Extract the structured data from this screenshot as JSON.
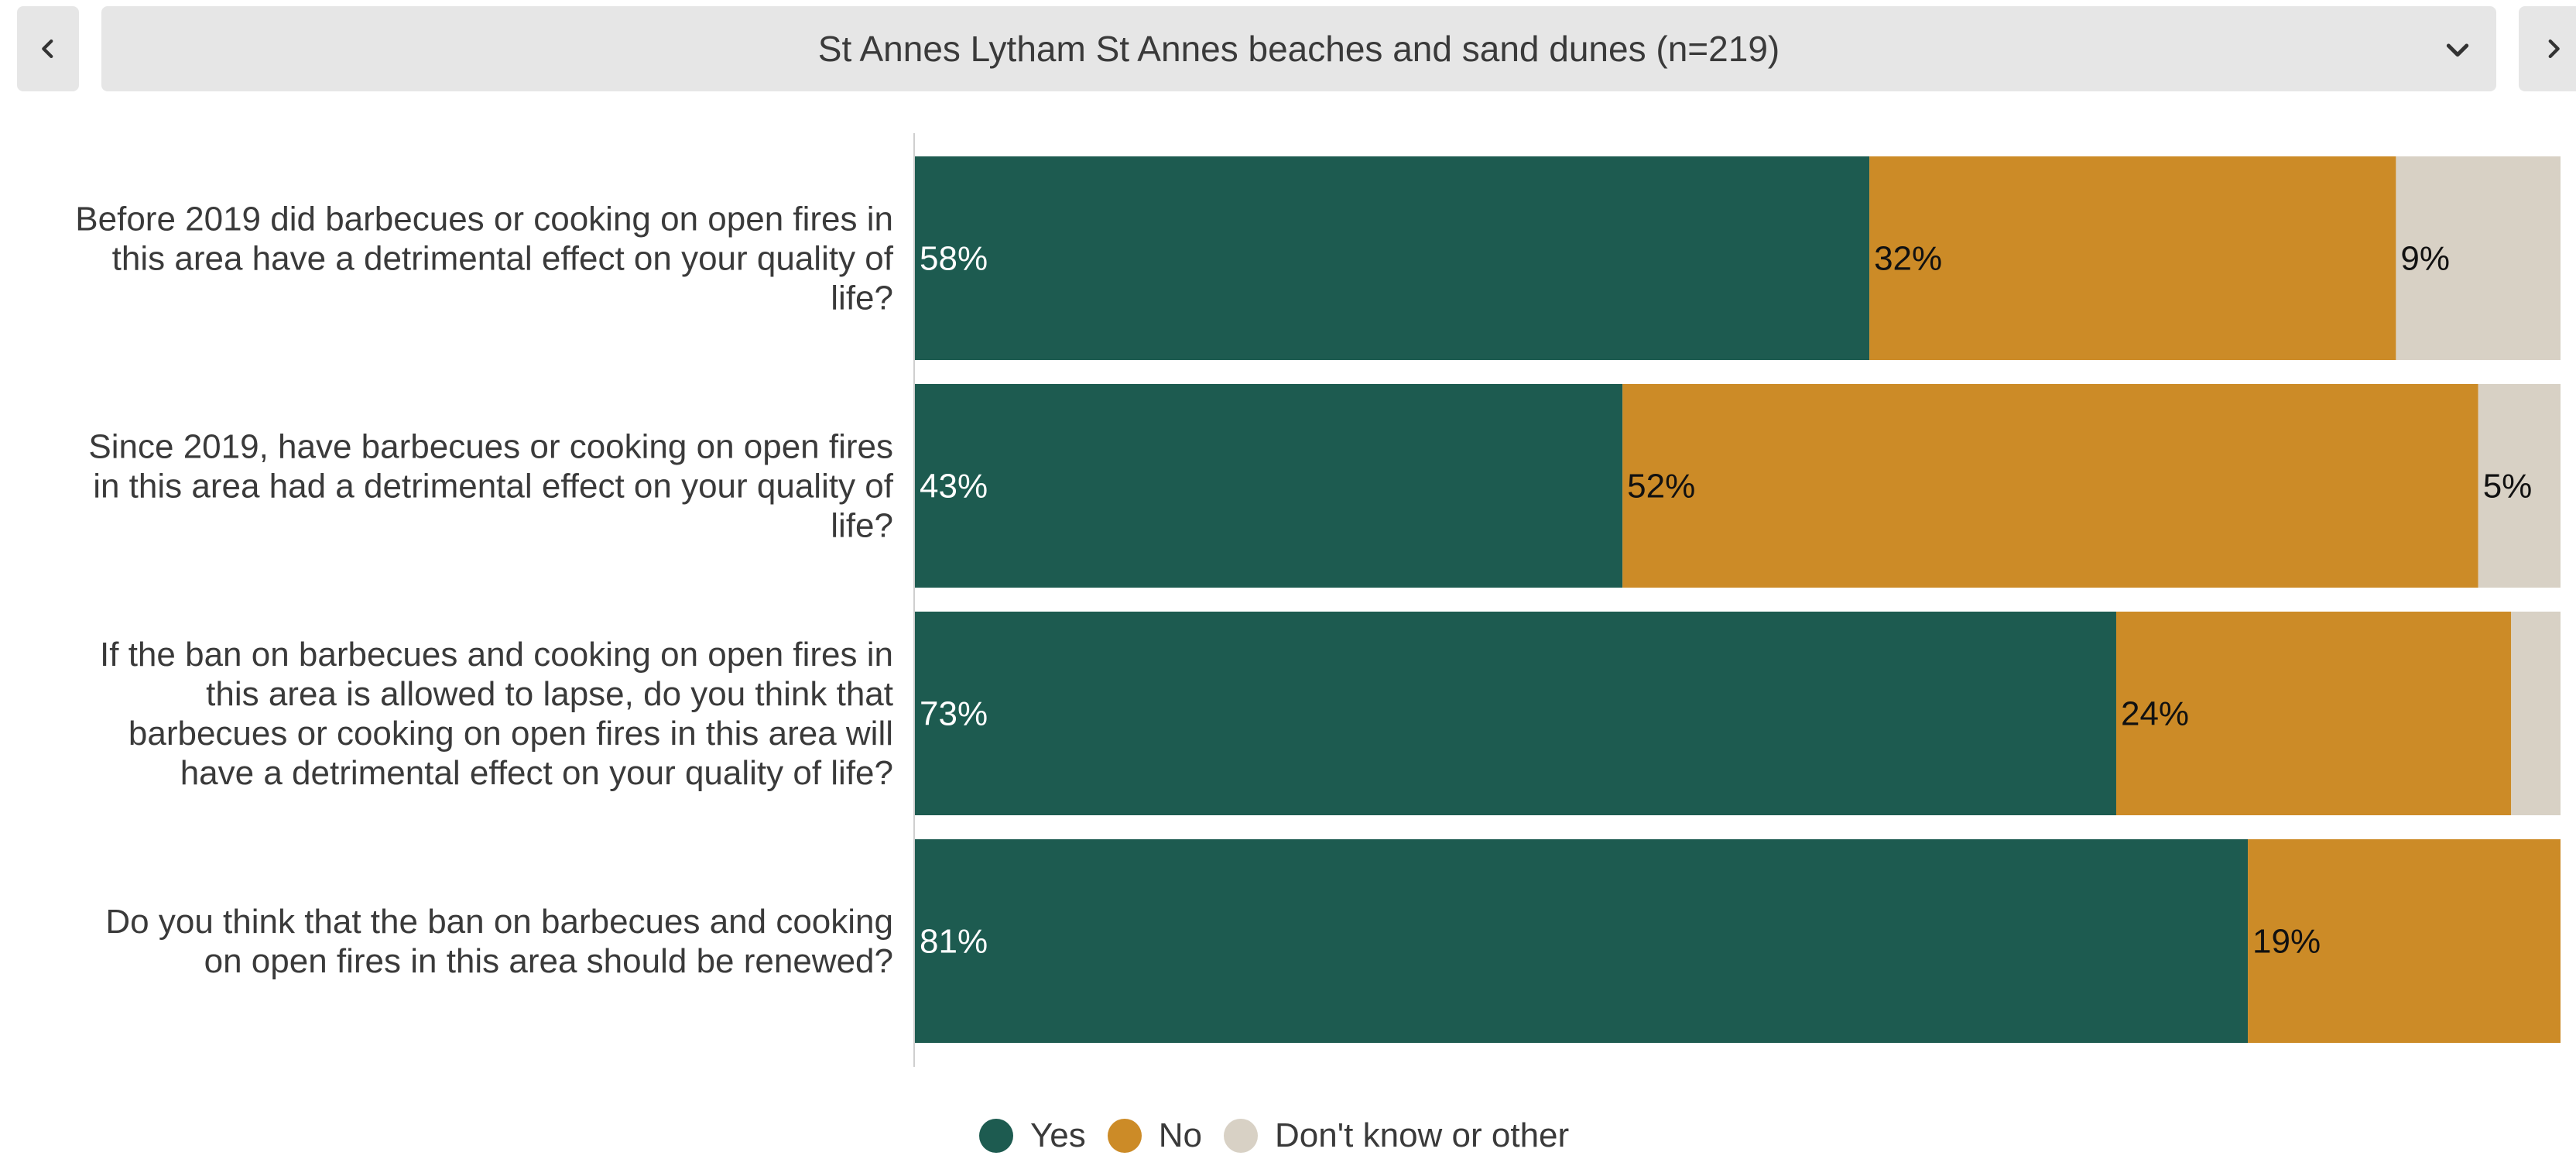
{
  "header": {
    "title": "St Annes Lytham St Annes beaches and sand dunes (n=219)",
    "prev_icon": "chevron-left-icon",
    "next_icon": "chevron-right-icon",
    "dropdown_icon": "chevron-down-icon"
  },
  "colors": {
    "yes": "#1d5b50",
    "no": "#cc8b27",
    "dk": "#d8d1c5"
  },
  "chart_data": {
    "type": "bar",
    "orientation": "horizontal",
    "stacked": true,
    "categories": [
      "Before 2019 did barbecues or cooking on open fires in this area have a detrimental effect on your quality of life?",
      "Since 2019, have barbecues or cooking on open fires in this area had a detrimental effect on your quality of life?",
      "If the ban on barbecues and cooking on open fires in this area is allowed to lapse, do you think that barbecues or cooking on open fires in this area will have a detrimental effect on your quality of life?",
      "Do you think that the ban on barbecues and cooking on open fires in this area should be renewed?"
    ],
    "category_lines": [
      [
        "Before 2019 did barbecues or cooking on open fires in",
        "this area have a detrimental effect on your quality of",
        "life?"
      ],
      [
        "Since 2019, have barbecues or cooking on open fires",
        "in this area had a detrimental effect on your quality of",
        "life?"
      ],
      [
        "If the ban on barbecues and cooking on open fires in",
        "this area is allowed to lapse, do you think that",
        "barbecues or cooking on open fires in this area will",
        "have a detrimental effect on your quality of life?"
      ],
      [
        "Do you think that the ban on barbecues and cooking",
        "on open fires in this area should be renewed?"
      ]
    ],
    "series": [
      {
        "name": "Yes",
        "values": [
          58,
          43,
          73,
          81
        ],
        "labels": [
          "58%",
          "43%",
          "73%",
          "81%"
        ]
      },
      {
        "name": "No",
        "values": [
          32,
          52,
          24,
          19
        ],
        "labels": [
          "32%",
          "52%",
          "24%",
          "19%"
        ]
      },
      {
        "name": "Don't know or other",
        "values": [
          9,
          5,
          3,
          0
        ],
        "labels": [
          "9%",
          "5%",
          "",
          ""
        ]
      }
    ],
    "xlim": [
      0,
      100
    ],
    "grid": false,
    "legend_position": "bottom"
  }
}
